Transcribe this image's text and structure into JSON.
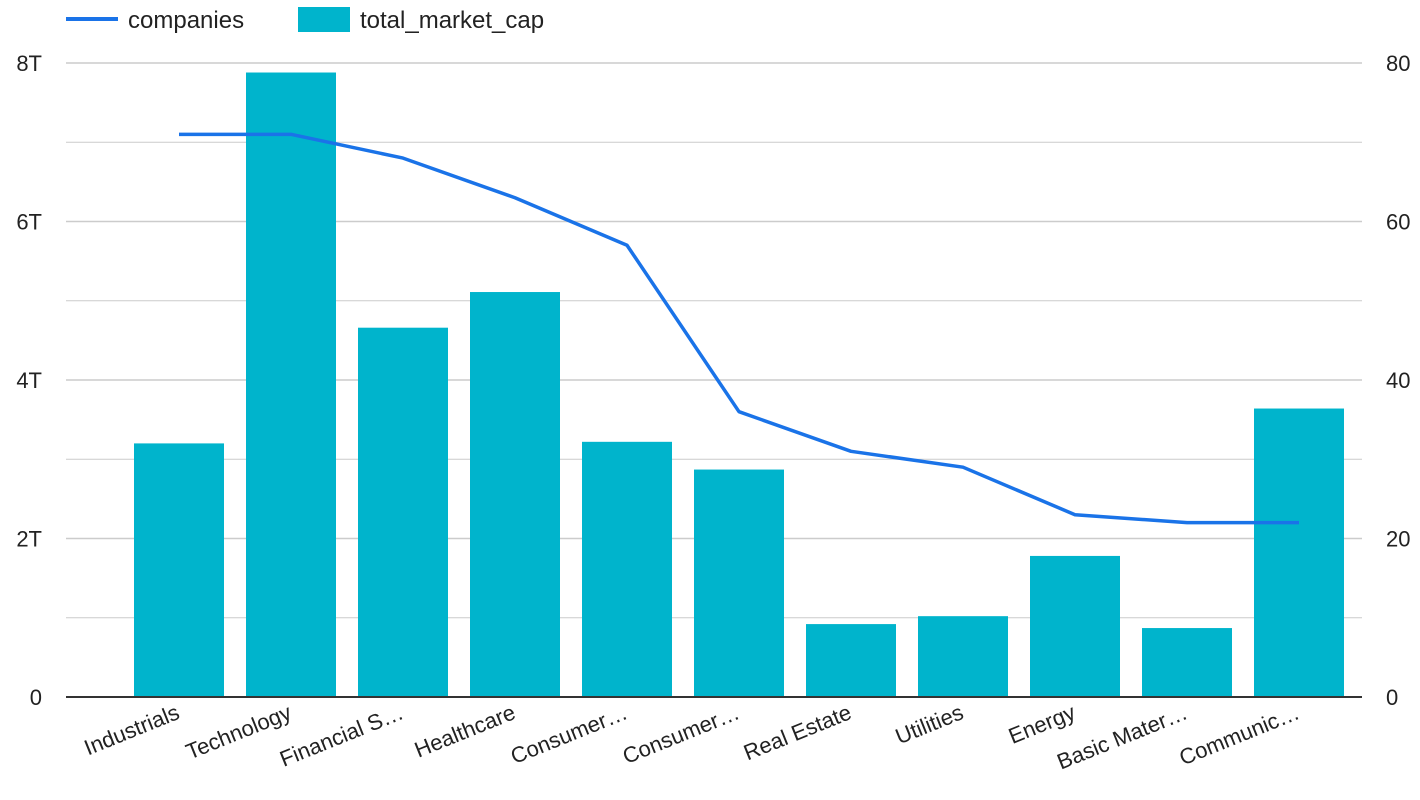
{
  "chart_data": {
    "type": "bar",
    "categories": [
      "Industrials",
      "Technology",
      "Financial S…",
      "Healthcare",
      "Consumer…",
      "Consumer…",
      "Real Estate",
      "Utilities",
      "Energy",
      "Basic Mater…",
      "Communic…"
    ],
    "series": [
      {
        "name": "total_market_cap",
        "type": "bar",
        "axis": "left",
        "color": "#00B4CC",
        "values": [
          3.2,
          7.88,
          4.66,
          5.11,
          3.22,
          2.87,
          0.92,
          1.02,
          1.78,
          0.87,
          3.64
        ]
      },
      {
        "name": "companies",
        "type": "line",
        "axis": "right",
        "color": "#1A73E8",
        "values": [
          71,
          71,
          68,
          63,
          57,
          36,
          31,
          29,
          23,
          22,
          22
        ]
      }
    ],
    "y_left": {
      "ylim": [
        0,
        8
      ],
      "ticks": [
        "0",
        "2T",
        "4T",
        "6T",
        "8T"
      ],
      "unit": "T"
    },
    "y_right": {
      "ylim": [
        0,
        80
      ],
      "ticks": [
        "0",
        "20",
        "40",
        "60",
        "80"
      ]
    },
    "grid": true,
    "legend": "top-left"
  }
}
